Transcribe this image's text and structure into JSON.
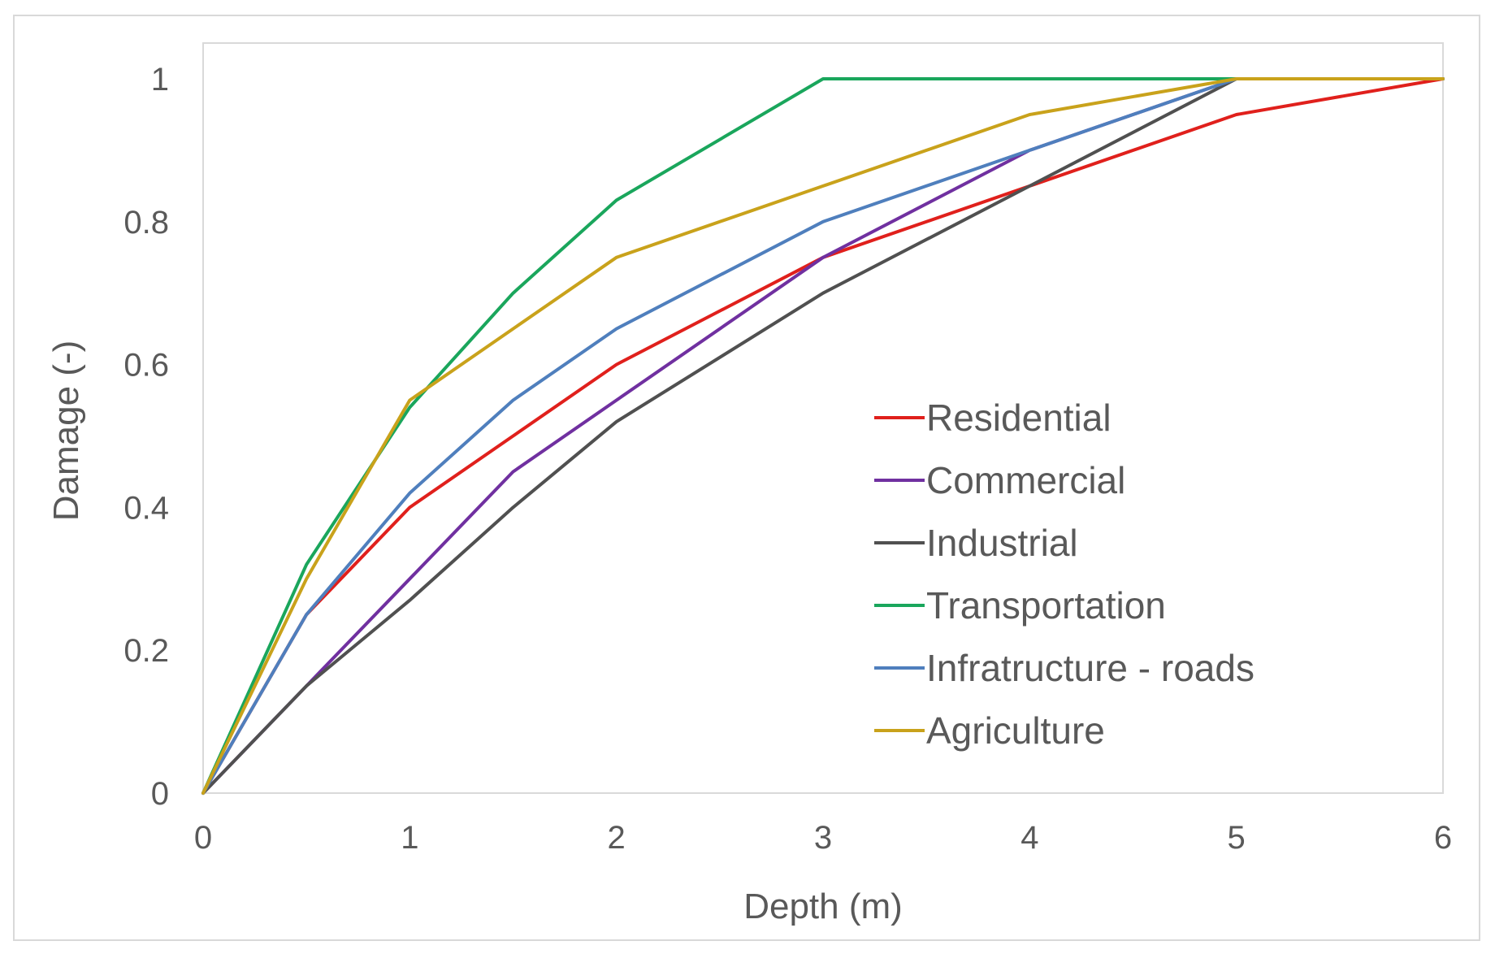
{
  "chart_data": {
    "type": "line",
    "title": "",
    "xlabel": "Depth (m)",
    "ylabel": "Damage (-)",
    "xlim": [
      0,
      6
    ],
    "ylim": [
      0,
      1
    ],
    "x_ticks": [
      "0",
      "1",
      "2",
      "3",
      "4",
      "5",
      "6"
    ],
    "y_ticks": [
      "0",
      "0.2",
      "0.4",
      "0.6",
      "0.8",
      "1"
    ],
    "grid": false,
    "legend_position": "center-right",
    "series": [
      {
        "name": "Residential",
        "color": "#e0201c",
        "x": [
          0,
          0.5,
          1,
          1.5,
          2,
          3,
          4,
          5,
          6
        ],
        "y": [
          0,
          0.25,
          0.4,
          0.5,
          0.6,
          0.75,
          0.85,
          0.95,
          1.0
        ]
      },
      {
        "name": "Commercial",
        "color": "#7030a0",
        "x": [
          0,
          0.5,
          1,
          1.5,
          2,
          3,
          4,
          5,
          6
        ],
        "y": [
          0,
          0.15,
          0.3,
          0.45,
          0.55,
          0.75,
          0.9,
          1.0,
          1.0
        ]
      },
      {
        "name": "Industrial",
        "color": "#505050",
        "x": [
          0,
          0.5,
          1,
          1.5,
          2,
          3,
          4,
          5,
          6
        ],
        "y": [
          0,
          0.15,
          0.27,
          0.4,
          0.52,
          0.7,
          0.85,
          1.0,
          1.0
        ]
      },
      {
        "name": "Transportation",
        "color": "#1aa65c",
        "x": [
          0,
          0.5,
          1,
          1.5,
          2,
          3,
          4,
          5,
          6
        ],
        "y": [
          0,
          0.32,
          0.54,
          0.7,
          0.83,
          1.0,
          1.0,
          1.0,
          1.0
        ]
      },
      {
        "name": "Infratructure - roads",
        "color": "#4f7fbd",
        "x": [
          0,
          0.5,
          1,
          1.5,
          2,
          3,
          4,
          5,
          6
        ],
        "y": [
          0,
          0.25,
          0.42,
          0.55,
          0.65,
          0.8,
          0.9,
          1.0,
          1.0
        ]
      },
      {
        "name": "Agriculture",
        "color": "#c9a21b",
        "x": [
          0,
          0.5,
          1,
          1.5,
          2,
          3,
          4,
          5,
          6
        ],
        "y": [
          0,
          0.3,
          0.55,
          0.65,
          0.75,
          0.85,
          0.95,
          1.0,
          1.0
        ]
      }
    ]
  }
}
